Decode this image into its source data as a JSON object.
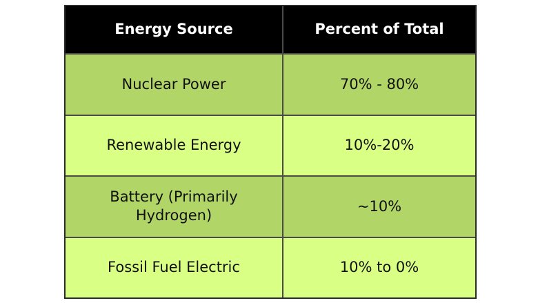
{
  "chart_data": {
    "type": "table",
    "columns": [
      "Energy Source",
      "Percent of Total"
    ],
    "rows": [
      [
        "Nuclear Power",
        "70% - 80%"
      ],
      [
        "Renewable Energy",
        "10%-20%"
      ],
      [
        "Battery (Primarily Hydrogen)",
        "~10%"
      ],
      [
        "Fossil Fuel Electric",
        "10% to 0%"
      ]
    ]
  },
  "colors": {
    "header_bg": "#000000",
    "header_text": "#ffffff",
    "row_dark": "#b1d567",
    "row_light": "#d9ff84",
    "border": "#4a4a4a"
  }
}
